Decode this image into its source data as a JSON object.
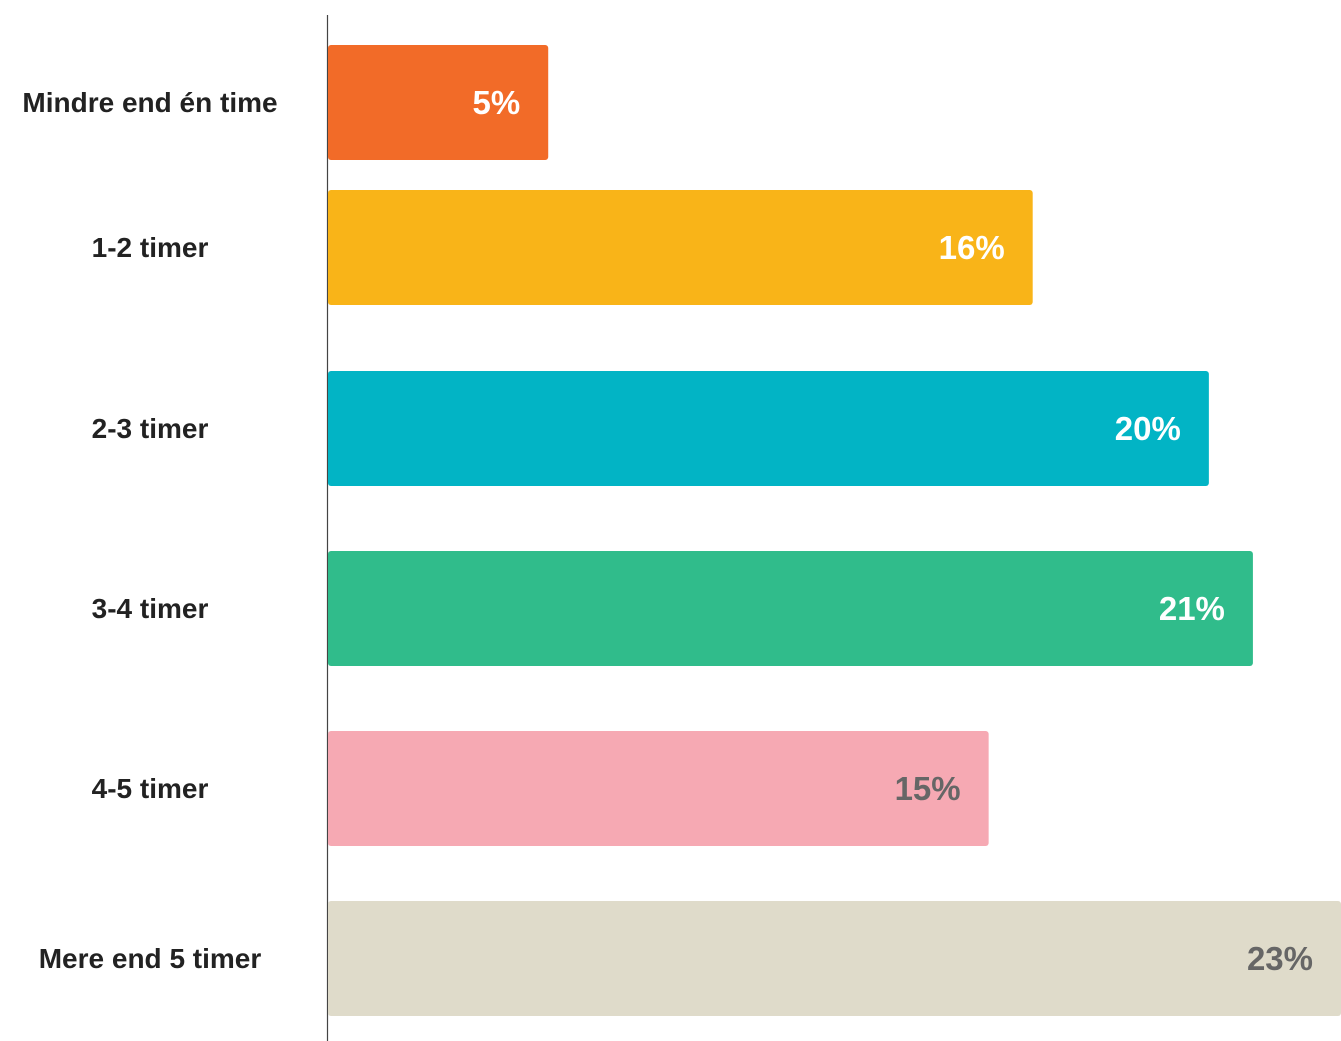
{
  "chart_data": {
    "type": "bar",
    "orientation": "horizontal",
    "categories": [
      "Mindre end én time",
      "1-2 timer",
      "2-3 timer",
      "3-4 timer",
      "4-5 timer",
      "Mere end 5 timer"
    ],
    "values": [
      5,
      16,
      20,
      21,
      15,
      23
    ],
    "value_labels": [
      "5%",
      "16%",
      "20%",
      "21%",
      "15%",
      "23%"
    ],
    "colors": [
      "#f26b28",
      "#f9b418",
      "#02b4c5",
      "#30bc8b",
      "#f6a9b3",
      "#dfdbca"
    ],
    "label_colors": [
      "#ffffff",
      "#ffffff",
      "#ffffff",
      "#ffffff",
      "#666666",
      "#666666"
    ]
  }
}
